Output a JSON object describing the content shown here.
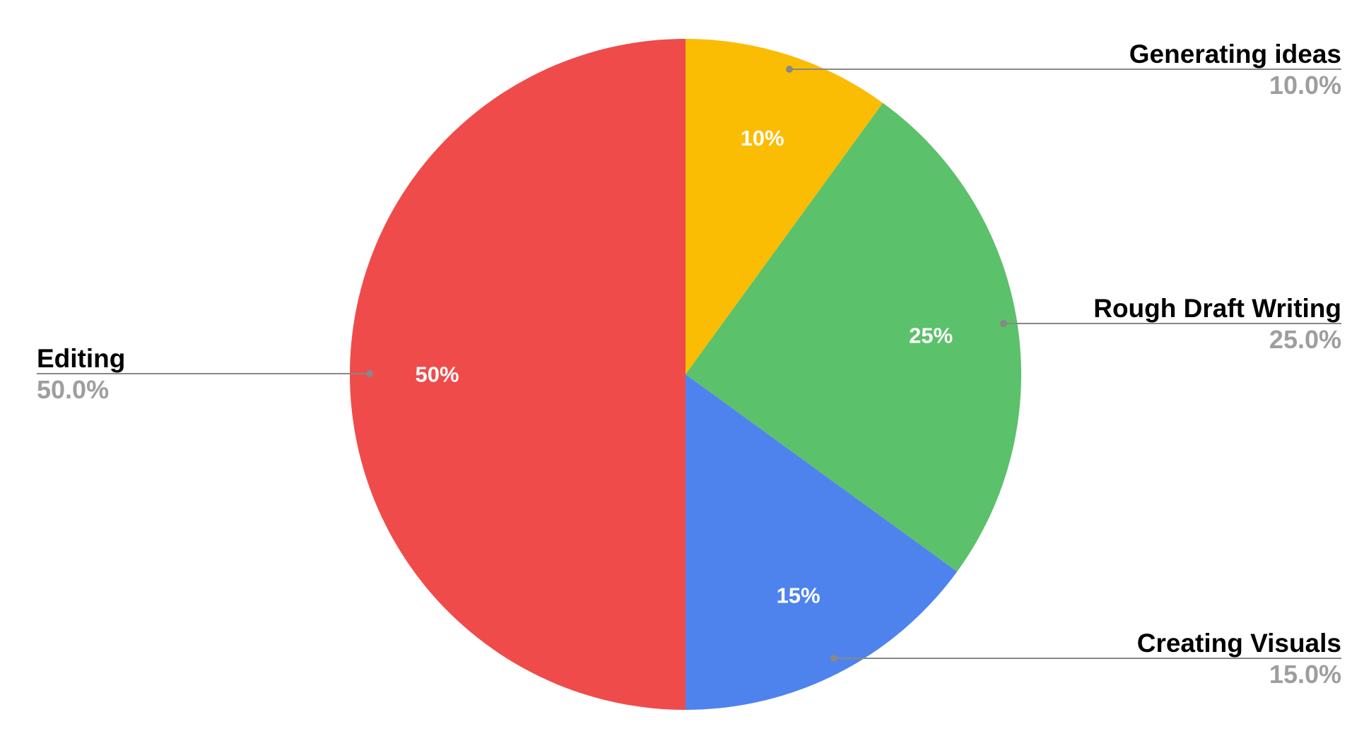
{
  "chart_data": {
    "type": "pie",
    "title": "",
    "slices": [
      {
        "label": "Generating ideas",
        "value": 10,
        "pct_label": "10%",
        "legend_value": "10.0%",
        "color": "#fbbc04",
        "side": "right"
      },
      {
        "label": "Rough Draft Writing",
        "value": 25,
        "pct_label": "25%",
        "legend_value": "25.0%",
        "color": "#5bc16b",
        "side": "right"
      },
      {
        "label": "Creating Visuals",
        "value": 15,
        "pct_label": "15%",
        "legend_value": "15.0%",
        "color": "#4e83ee",
        "side": "right"
      },
      {
        "label": "Editing",
        "value": 50,
        "pct_label": "50%",
        "legend_value": "50.0%",
        "color": "#ef4b4b",
        "side": "left"
      }
    ],
    "start_angle_deg": 0,
    "direction": "clockwise",
    "legend": "labeled-callouts",
    "colors": {
      "leader_line": "#888888",
      "slice_label": "#ffffff",
      "callout_name": "#000000",
      "callout_value": "#9e9e9e"
    }
  }
}
